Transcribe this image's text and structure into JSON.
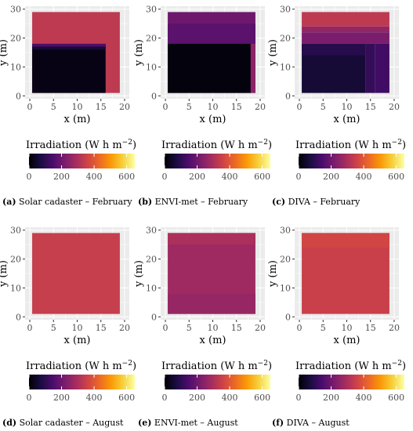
{
  "chart_data": [
    {
      "type": "heatmap",
      "caption_tag": "(a)",
      "caption_text": " Solar cadaster – February",
      "x_ticks": [
        0,
        5,
        10,
        15,
        20
      ],
      "y_ticks": [
        0,
        10,
        20,
        30
      ],
      "xlabel": "x (m)",
      "ylabel": "y (m)",
      "xlim": [
        -1,
        21
      ],
      "ylim": [
        -1,
        31
      ],
      "cells": [
        {
          "x0": 0.5,
          "x1": 19,
          "y0": 1,
          "y1": 29,
          "value": 330
        },
        {
          "x0": 0.5,
          "x1": 16,
          "y0": 1,
          "y1": 18,
          "value": 20
        },
        {
          "x0": 0.5,
          "x1": 16,
          "y0": 17,
          "y1": 18,
          "value": 150
        },
        {
          "x0": 0.5,
          "x1": 16,
          "y0": 16,
          "y1": 17,
          "value": 60
        }
      ],
      "legend": {
        "title": "Irradiation",
        "unit": "(W h m",
        "unit_exp": "−2",
        "unit_close": ")",
        "ticks": [
          0,
          200,
          400,
          600
        ],
        "range": [
          0,
          650
        ]
      }
    },
    {
      "type": "heatmap",
      "caption_tag": "(b)",
      "caption_text": " ENVI-met – February",
      "x_ticks": [
        0,
        5,
        10,
        15,
        20
      ],
      "y_ticks": [
        0,
        10,
        20,
        30
      ],
      "xlabel": "x (m)",
      "ylabel": "y (m)",
      "xlim": [
        -1,
        21
      ],
      "ylim": [
        -1,
        31
      ],
      "cells": [
        {
          "x0": 0.5,
          "x1": 19,
          "y0": 1,
          "y1": 29,
          "value": 200
        },
        {
          "x0": 0.5,
          "x1": 19,
          "y0": 18,
          "y1": 25,
          "value": 170
        },
        {
          "x0": 0.5,
          "x1": 18,
          "y0": 1,
          "y1": 18,
          "value": 10
        },
        {
          "x0": 18,
          "x1": 19,
          "y0": 1,
          "y1": 18,
          "value": 250
        }
      ],
      "legend": {
        "title": "Irradiation",
        "unit": "(W h m",
        "unit_exp": "−2",
        "unit_close": ")",
        "ticks": [
          0,
          200,
          400,
          600
        ],
        "range": [
          0,
          650
        ]
      }
    },
    {
      "type": "heatmap",
      "caption_tag": "(c)",
      "caption_text": " DIVA – February",
      "x_ticks": [
        0,
        5,
        10,
        15,
        20
      ],
      "y_ticks": [
        0,
        10,
        20,
        30
      ],
      "xlabel": "x (m)",
      "ylabel": "y (m)",
      "xlim": [
        -1,
        21
      ],
      "ylim": [
        -1,
        31
      ],
      "cells": [
        {
          "x0": 0.5,
          "x1": 19,
          "y0": 24,
          "y1": 29,
          "value": 330
        },
        {
          "x0": 0.5,
          "x1": 19,
          "y0": 22,
          "y1": 24,
          "value": 260
        },
        {
          "x0": 0.5,
          "x1": 19,
          "y0": 18,
          "y1": 22,
          "value": 220
        },
        {
          "x0": 0.5,
          "x1": 14,
          "y0": 1,
          "y1": 18,
          "value": 60
        },
        {
          "x0": 0.5,
          "x1": 14,
          "y0": 14,
          "y1": 18,
          "value": 90
        },
        {
          "x0": 14,
          "x1": 16,
          "y0": 1,
          "y1": 18,
          "value": 110
        },
        {
          "x0": 16,
          "x1": 19,
          "y0": 1,
          "y1": 18,
          "value": 130
        }
      ],
      "legend": {
        "title": "Irradiation",
        "unit": "(W h m",
        "unit_exp": "−2",
        "unit_close": ")",
        "ticks": [
          0,
          200,
          400,
          600
        ],
        "range": [
          0,
          650
        ]
      }
    },
    {
      "type": "heatmap",
      "caption_tag": "(d)",
      "caption_text": " Solar cadaster – August",
      "x_ticks": [
        0,
        5,
        10,
        15,
        20
      ],
      "y_ticks": [
        0,
        10,
        20,
        30
      ],
      "xlabel": "x (m)",
      "ylabel": "y (m)",
      "xlim": [
        -1,
        21
      ],
      "ylim": [
        -1,
        31
      ],
      "cells": [
        {
          "x0": 0.5,
          "x1": 19,
          "y0": 1,
          "y1": 29,
          "value": 345
        }
      ],
      "legend": {
        "title": "Irradiation",
        "unit": "(W h m",
        "unit_exp": "−2",
        "unit_close": ")",
        "ticks": [
          0,
          200,
          400,
          600
        ],
        "range": [
          0,
          650
        ]
      }
    },
    {
      "type": "heatmap",
      "caption_tag": "(e)",
      "caption_text": " ENVI-met – August",
      "x_ticks": [
        0,
        5,
        10,
        15,
        20
      ],
      "y_ticks": [
        0,
        10,
        20,
        30
      ],
      "xlabel": "x (m)",
      "ylabel": "y (m)",
      "xlim": [
        -1,
        21
      ],
      "ylim": [
        -1,
        31
      ],
      "cells": [
        {
          "x0": 0.5,
          "x1": 19,
          "y0": 1,
          "y1": 29,
          "value": 280
        },
        {
          "x0": 0.5,
          "x1": 19,
          "y0": 25,
          "y1": 29,
          "value": 300
        },
        {
          "x0": 0.5,
          "x1": 19,
          "y0": 1,
          "y1": 8,
          "value": 265
        }
      ],
      "legend": {
        "title": "Irradiation",
        "unit": "(W h m",
        "unit_exp": "−2",
        "unit_close": ")",
        "ticks": [
          0,
          200,
          400,
          600
        ],
        "range": [
          0,
          650
        ]
      }
    },
    {
      "type": "heatmap",
      "caption_tag": "(f)",
      "caption_text": " DIVA – August",
      "x_ticks": [
        0,
        5,
        10,
        15,
        20
      ],
      "y_ticks": [
        0,
        10,
        20,
        30
      ],
      "xlabel": "x (m)",
      "ylabel": "y (m)",
      "xlim": [
        -1,
        21
      ],
      "ylim": [
        -1,
        31
      ],
      "cells": [
        {
          "x0": 0.5,
          "x1": 19,
          "y0": 1,
          "y1": 29,
          "value": 350
        },
        {
          "x0": 0.5,
          "x1": 19,
          "y0": 24,
          "y1": 29,
          "value": 365
        }
      ],
      "legend": {
        "title": "Irradiation",
        "unit": "(W h m",
        "unit_exp": "−2",
        "unit_close": ")",
        "ticks": [
          0,
          200,
          400,
          600
        ],
        "range": [
          0,
          650
        ]
      }
    }
  ],
  "colors": {
    "panel_bg": "#ebebeb",
    "grid": "#ffffff",
    "tick": "#333333",
    "colormap_inferno": [
      "#000004",
      "#1b0c41",
      "#4a0c6b",
      "#781c6d",
      "#a52c60",
      "#cf4446",
      "#ed6925",
      "#fb9b06",
      "#f7d13d",
      "#fcffa4"
    ]
  }
}
